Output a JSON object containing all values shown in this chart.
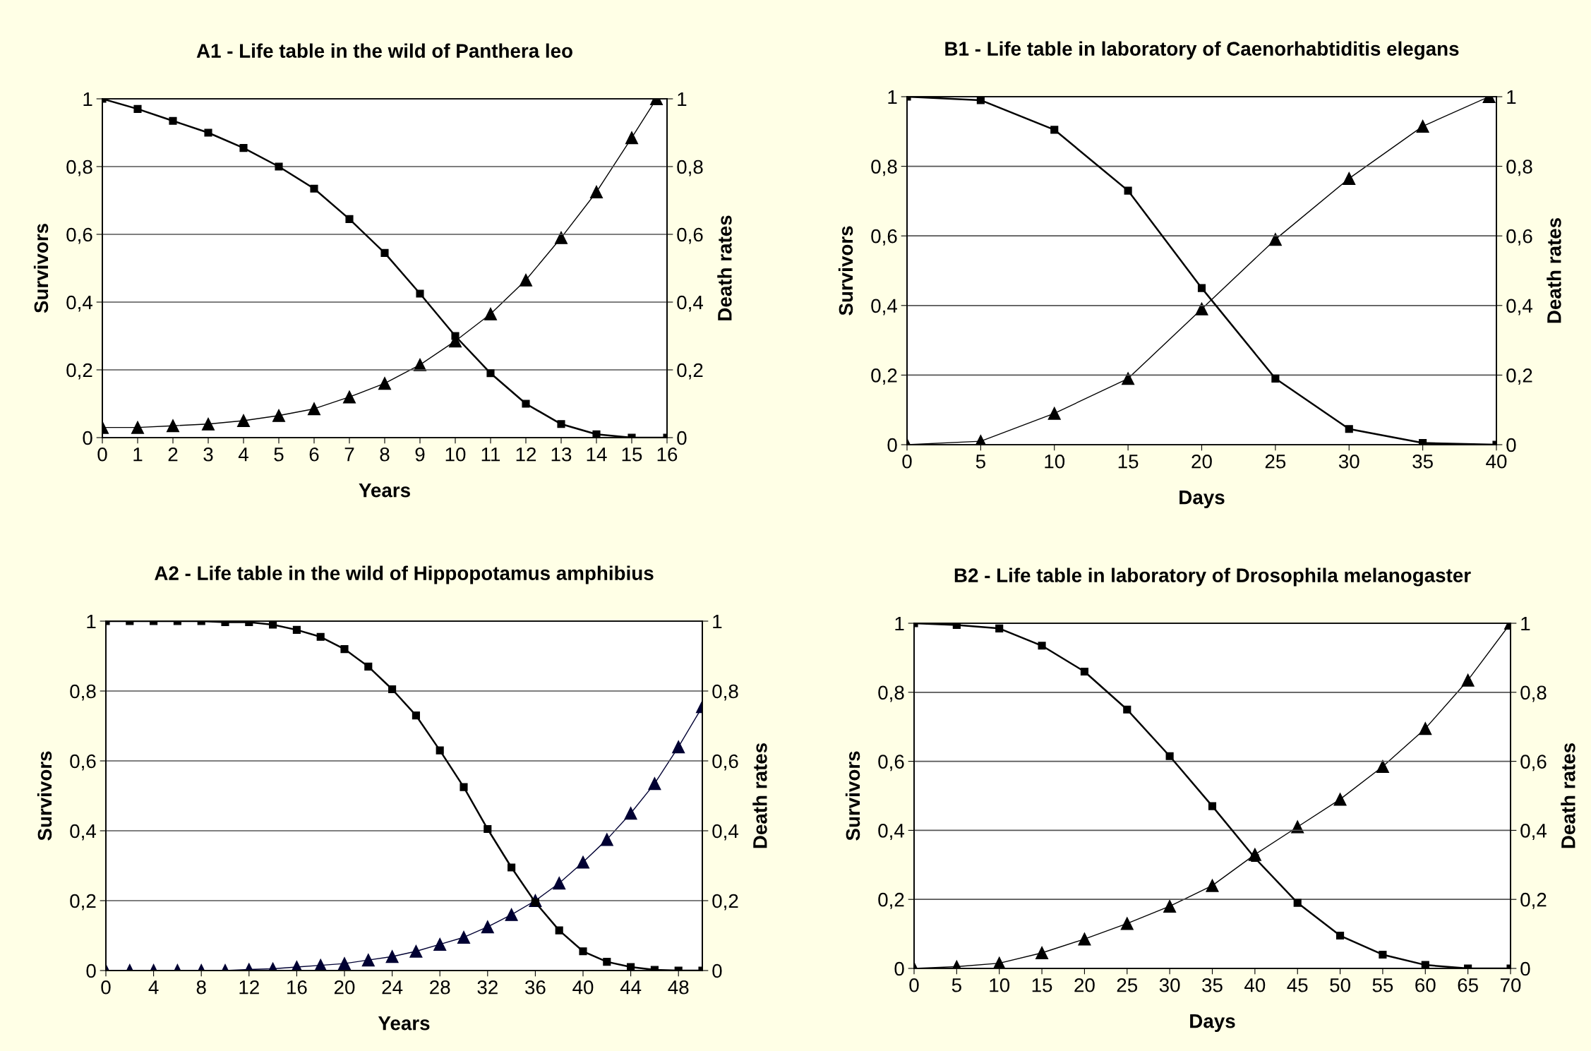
{
  "chart_data": [
    {
      "type": "line",
      "title": "A1 - Life table in the wild of Panthera leo",
      "xlabel": "Years",
      "ylabel": "Survivors",
      "y2label": "Death rates",
      "x": [
        0,
        1,
        2,
        3,
        4,
        5,
        6,
        7,
        8,
        9,
        10,
        11,
        12,
        13,
        14,
        15,
        16
      ],
      "xlim": [
        0,
        16
      ],
      "xticks": [
        0,
        1,
        2,
        3,
        4,
        5,
        6,
        7,
        8,
        9,
        10,
        11,
        12,
        13,
        14,
        15,
        16
      ],
      "ylim": [
        0,
        1
      ],
      "yticks": [
        0,
        {
          "value": 0.2,
          "label": "0,2"
        },
        {
          "value": 0.4,
          "label": "0,4"
        },
        {
          "value": 0.6,
          "label": "0,6"
        },
        {
          "value": 0.8,
          "label": "0,8"
        },
        1
      ],
      "y2lim": [
        0,
        1
      ],
      "y2ticks": [
        0,
        {
          "value": 0.2,
          "label": "0,2"
        },
        {
          "value": 0.4,
          "label": "0,4"
        },
        {
          "value": 0.6,
          "label": "0,6"
        },
        {
          "value": 0.8,
          "label": "0,8"
        },
        1
      ],
      "grid": "y",
      "legend": false,
      "series": [
        {
          "color": "#000000",
          "marker": "square",
          "values": [
            1,
            0.97,
            0.935,
            0.9,
            0.855,
            0.8,
            0.735,
            0.645,
            0.545,
            0.425,
            0.3,
            0.19,
            0.1,
            0.04,
            0.01,
            0,
            0
          ]
        },
        {
          "color": "#000000",
          "marker": "triangle",
          "axis": "y2",
          "x": [
            0,
            1,
            2,
            3,
            4,
            5,
            6,
            7,
            8,
            9,
            10,
            11,
            12,
            13,
            14,
            15,
            15.7
          ],
          "values": [
            0.03,
            0.03,
            0.035,
            0.04,
            0.05,
            0.065,
            0.085,
            0.12,
            0.16,
            0.215,
            0.285,
            0.365,
            0.465,
            0.59,
            0.725,
            0.885,
            1
          ]
        }
      ]
    },
    {
      "type": "line",
      "title": "B1 - Life table in laboratory of Caenorhabtiditis elegans",
      "xlabel": "Days",
      "ylabel": "Survivors",
      "y2label": "Death rates",
      "x": [
        0,
        5,
        10,
        15,
        20,
        25,
        30,
        35,
        40
      ],
      "xlim": [
        0,
        40
      ],
      "xticks": [
        0,
        5,
        10,
        15,
        20,
        25,
        30,
        35,
        40
      ],
      "ylim": [
        0,
        1
      ],
      "yticks": [
        0,
        {
          "value": 0.2,
          "label": "0,2"
        },
        {
          "value": 0.4,
          "label": "0,4"
        },
        {
          "value": 0.6,
          "label": "0,6"
        },
        {
          "value": 0.8,
          "label": "0,8"
        },
        1
      ],
      "y2lim": [
        0,
        1
      ],
      "y2ticks": [
        0,
        {
          "value": 0.2,
          "label": "0,2"
        },
        {
          "value": 0.4,
          "label": "0,4"
        },
        {
          "value": 0.6,
          "label": "0,6"
        },
        {
          "value": 0.8,
          "label": "0,8"
        },
        1
      ],
      "grid": "y",
      "legend": false,
      "series": [
        {
          "color": "#000000",
          "marker": "square",
          "values": [
            1,
            0.99,
            0.905,
            0.73,
            0.45,
            0.19,
            0.045,
            0.005,
            0
          ]
        },
        {
          "color": "#000000",
          "marker": "triangle",
          "axis": "y2",
          "x": [
            0,
            5,
            10,
            15,
            20,
            25,
            30,
            35,
            39.5
          ],
          "values": [
            0,
            0.01,
            0.09,
            0.19,
            0.39,
            0.59,
            0.765,
            0.915,
            1
          ]
        }
      ]
    },
    {
      "type": "line",
      "title": "A2 - Life table in the wild of Hippopotamus amphibius",
      "xlabel": "Years",
      "ylabel": "Survivors",
      "y2label": "Death rates",
      "x": [
        0,
        2,
        4,
        6,
        8,
        10,
        12,
        14,
        16,
        18,
        20,
        22,
        24,
        26,
        28,
        30,
        32,
        34,
        36,
        38,
        40,
        42,
        44,
        46,
        48,
        50
      ],
      "xlim": [
        0,
        50
      ],
      "xticks": [
        0,
        4,
        8,
        12,
        16,
        20,
        24,
        28,
        32,
        36,
        40,
        44,
        48
      ],
      "ylim": [
        0,
        1
      ],
      "yticks": [
        0,
        {
          "value": 0.2,
          "label": "0,2"
        },
        {
          "value": 0.4,
          "label": "0,4"
        },
        {
          "value": 0.6,
          "label": "0,6"
        },
        {
          "value": 0.8,
          "label": "0,8"
        },
        1
      ],
      "y2lim": [
        0,
        1
      ],
      "y2ticks": [
        0,
        {
          "value": 0.2,
          "label": "0,2"
        },
        {
          "value": 0.4,
          "label": "0,4"
        },
        {
          "value": 0.6,
          "label": "0,6"
        },
        {
          "value": 0.8,
          "label": "0,8"
        },
        1
      ],
      "grid": "y",
      "legend": false,
      "series": [
        {
          "color": "#000000",
          "marker": "square",
          "values": [
            1,
            1,
            1,
            1,
            1,
            0.997,
            0.997,
            0.99,
            0.975,
            0.955,
            0.92,
            0.87,
            0.805,
            0.73,
            0.63,
            0.525,
            0.405,
            0.295,
            0.195,
            0.115,
            0.055,
            0.025,
            0.01,
            0.002,
            0,
            0
          ]
        },
        {
          "color": "#000033",
          "marker": "triangle",
          "axis": "y2",
          "values": [
            0,
            0,
            0,
            0,
            0,
            0,
            0.003,
            0.005,
            0.01,
            0.015,
            0.02,
            0.03,
            0.04,
            0.055,
            0.075,
            0.095,
            0.125,
            0.16,
            0.2,
            0.25,
            0.31,
            0.375,
            0.45,
            0.535,
            0.64,
            0.755
          ]
        }
      ]
    },
    {
      "type": "line",
      "title": "B2 - Life table in laboratory of Drosophila melanogaster",
      "xlabel": "Days",
      "ylabel": "Survivors",
      "y2label": "Death rates",
      "x": [
        0,
        5,
        10,
        15,
        20,
        25,
        30,
        35,
        40,
        45,
        50,
        55,
        60,
        65,
        70
      ],
      "xlim": [
        0,
        70
      ],
      "xticks": [
        0,
        5,
        10,
        15,
        20,
        25,
        30,
        35,
        40,
        45,
        50,
        55,
        60,
        65,
        70
      ],
      "ylim": [
        0,
        1
      ],
      "yticks": [
        0,
        {
          "value": 0.2,
          "label": "0,2"
        },
        {
          "value": 0.4,
          "label": "0,4"
        },
        {
          "value": 0.6,
          "label": "0,6"
        },
        {
          "value": 0.8,
          "label": "0,8"
        },
        1
      ],
      "y2lim": [
        0,
        1
      ],
      "y2ticks": [
        0,
        {
          "value": 0.2,
          "label": "0,2"
        },
        {
          "value": 0.4,
          "label": "0,4"
        },
        {
          "value": 0.6,
          "label": "0,6"
        },
        {
          "value": 0.8,
          "label": "0,8"
        },
        1
      ],
      "grid": "y",
      "legend": false,
      "series": [
        {
          "color": "#000000",
          "marker": "square",
          "values": [
            1,
            0.995,
            0.985,
            0.935,
            0.86,
            0.75,
            0.615,
            0.47,
            0.32,
            0.19,
            0.095,
            0.04,
            0.01,
            0,
            0
          ]
        },
        {
          "color": "#000000",
          "marker": "triangle",
          "axis": "y2",
          "values": [
            0,
            0.005,
            0.015,
            0.045,
            0.085,
            0.13,
            0.18,
            0.24,
            0.33,
            0.41,
            0.49,
            0.585,
            0.695,
            0.835,
            1
          ]
        }
      ]
    }
  ]
}
